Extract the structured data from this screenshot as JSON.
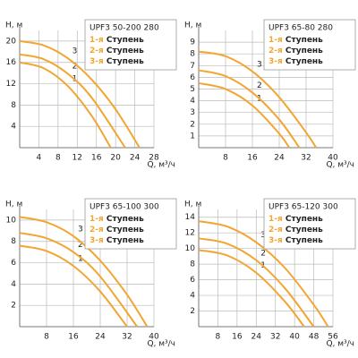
{
  "chart_data": [
    {
      "type": "line",
      "title": "UPF3 50-200 280",
      "x_label": "Q, м³/ч",
      "y_label": "H, м",
      "xlim": [
        0,
        28
      ],
      "xticks": [
        4,
        8,
        12,
        16,
        20,
        24,
        28
      ],
      "ylim": [
        0,
        22
      ],
      "yticks": [
        4,
        8,
        12,
        16,
        20
      ],
      "grid": true,
      "series": [
        {
          "name": "1-я Ступень",
          "label": "1",
          "color": "#f2a531",
          "x": [
            0,
            5,
            10,
            15,
            19
          ],
          "values": [
            16,
            14.9,
            11.6,
            6.0,
            0
          ]
        },
        {
          "name": "2-я Ступень",
          "label": "2",
          "color": "#f2a531",
          "x": [
            0,
            5,
            10,
            15,
            22
          ],
          "values": [
            17.5,
            16.6,
            13.9,
            9.4,
            0
          ]
        },
        {
          "name": "3-я Ступень",
          "label": "3",
          "color": "#f2a531",
          "x": [
            0,
            5,
            10,
            15,
            20,
            25
          ],
          "values": [
            20,
            19.2,
            16.8,
            12.8,
            7.2,
            0
          ]
        }
      ]
    },
    {
      "type": "line",
      "title": "UPF3 65-80 280",
      "x_label": "Q, м³/ч",
      "y_label": "H, м",
      "xlim": [
        0,
        40
      ],
      "xticks": [
        8,
        16,
        24,
        32,
        40
      ],
      "ylim": [
        0,
        10
      ],
      "yticks": [
        1,
        2,
        3,
        4,
        5,
        6,
        7,
        8,
        9
      ],
      "grid": true,
      "series": [
        {
          "name": "1-я Ступень",
          "label": "1",
          "color": "#f2a531",
          "x": [
            0,
            8,
            16,
            24,
            27
          ],
          "values": [
            5.5,
            5.0,
            3.6,
            1.2,
            0
          ]
        },
        {
          "name": "2-я Ступень",
          "label": "2",
          "color": "#f2a531",
          "x": [
            0,
            8,
            16,
            24,
            30
          ],
          "values": [
            6.6,
            6.1,
            4.7,
            2.4,
            0
          ]
        },
        {
          "name": "3-я Ступень",
          "label": "3",
          "color": "#f2a531",
          "x": [
            0,
            8,
            16,
            24,
            32,
            35
          ],
          "values": [
            8.2,
            7.8,
            6.5,
            4.3,
            1.3,
            0
          ]
        }
      ]
    },
    {
      "type": "line",
      "title": "UPF3 65-100 300",
      "x_label": "Q, м³/ч",
      "y_label": "H, м",
      "xlim": [
        0,
        40
      ],
      "xticks": [
        8,
        16,
        24,
        32,
        40
      ],
      "ylim": [
        0,
        11
      ],
      "yticks": [
        2,
        4,
        6,
        8,
        10
      ],
      "grid": true,
      "series": [
        {
          "name": "1-я Ступень",
          "label": "1",
          "color": "#f2a531",
          "x": [
            0,
            8,
            16,
            24,
            32
          ],
          "values": [
            7.6,
            7.1,
            5.7,
            3.3,
            0
          ]
        },
        {
          "name": "2-я Ступень",
          "label": "2",
          "color": "#f2a531",
          "x": [
            0,
            8,
            16,
            24,
            35
          ],
          "values": [
            8.8,
            8.3,
            7.0,
            4.7,
            0
          ]
        },
        {
          "name": "3-я Ступень",
          "label": "3",
          "color": "#f2a531",
          "x": [
            0,
            8,
            16,
            24,
            32,
            38
          ],
          "values": [
            10.3,
            9.8,
            8.5,
            6.2,
            3.0,
            0
          ]
        }
      ]
    },
    {
      "type": "line",
      "title": "UPF3 65-120 300",
      "x_label": "Q, м³/ч",
      "y_label": "H, м",
      "xlim": [
        0,
        56
      ],
      "xticks": [
        8,
        16,
        24,
        32,
        40,
        48,
        56
      ],
      "ylim": [
        0,
        15
      ],
      "yticks": [
        2,
        4,
        6,
        8,
        10,
        12,
        14
      ],
      "grid": true,
      "series": [
        {
          "name": "1-я Ступень",
          "label": "1",
          "color": "#f2a531",
          "x": [
            0,
            12,
            24,
            36,
            44
          ],
          "values": [
            9.8,
            9.1,
            6.9,
            3.2,
            0
          ]
        },
        {
          "name": "2-я Ступень",
          "label": "2",
          "color": "#f2a531",
          "x": [
            0,
            12,
            24,
            36,
            48
          ],
          "values": [
            11.3,
            10.6,
            8.5,
            4.9,
            0
          ]
        },
        {
          "name": "3-я Ступень",
          "label": "3",
          "color": "#f2a531",
          "x": [
            0,
            12,
            24,
            36,
            48,
            54
          ],
          "values": [
            13.5,
            12.8,
            10.8,
            7.5,
            2.8,
            0
          ]
        }
      ]
    }
  ]
}
